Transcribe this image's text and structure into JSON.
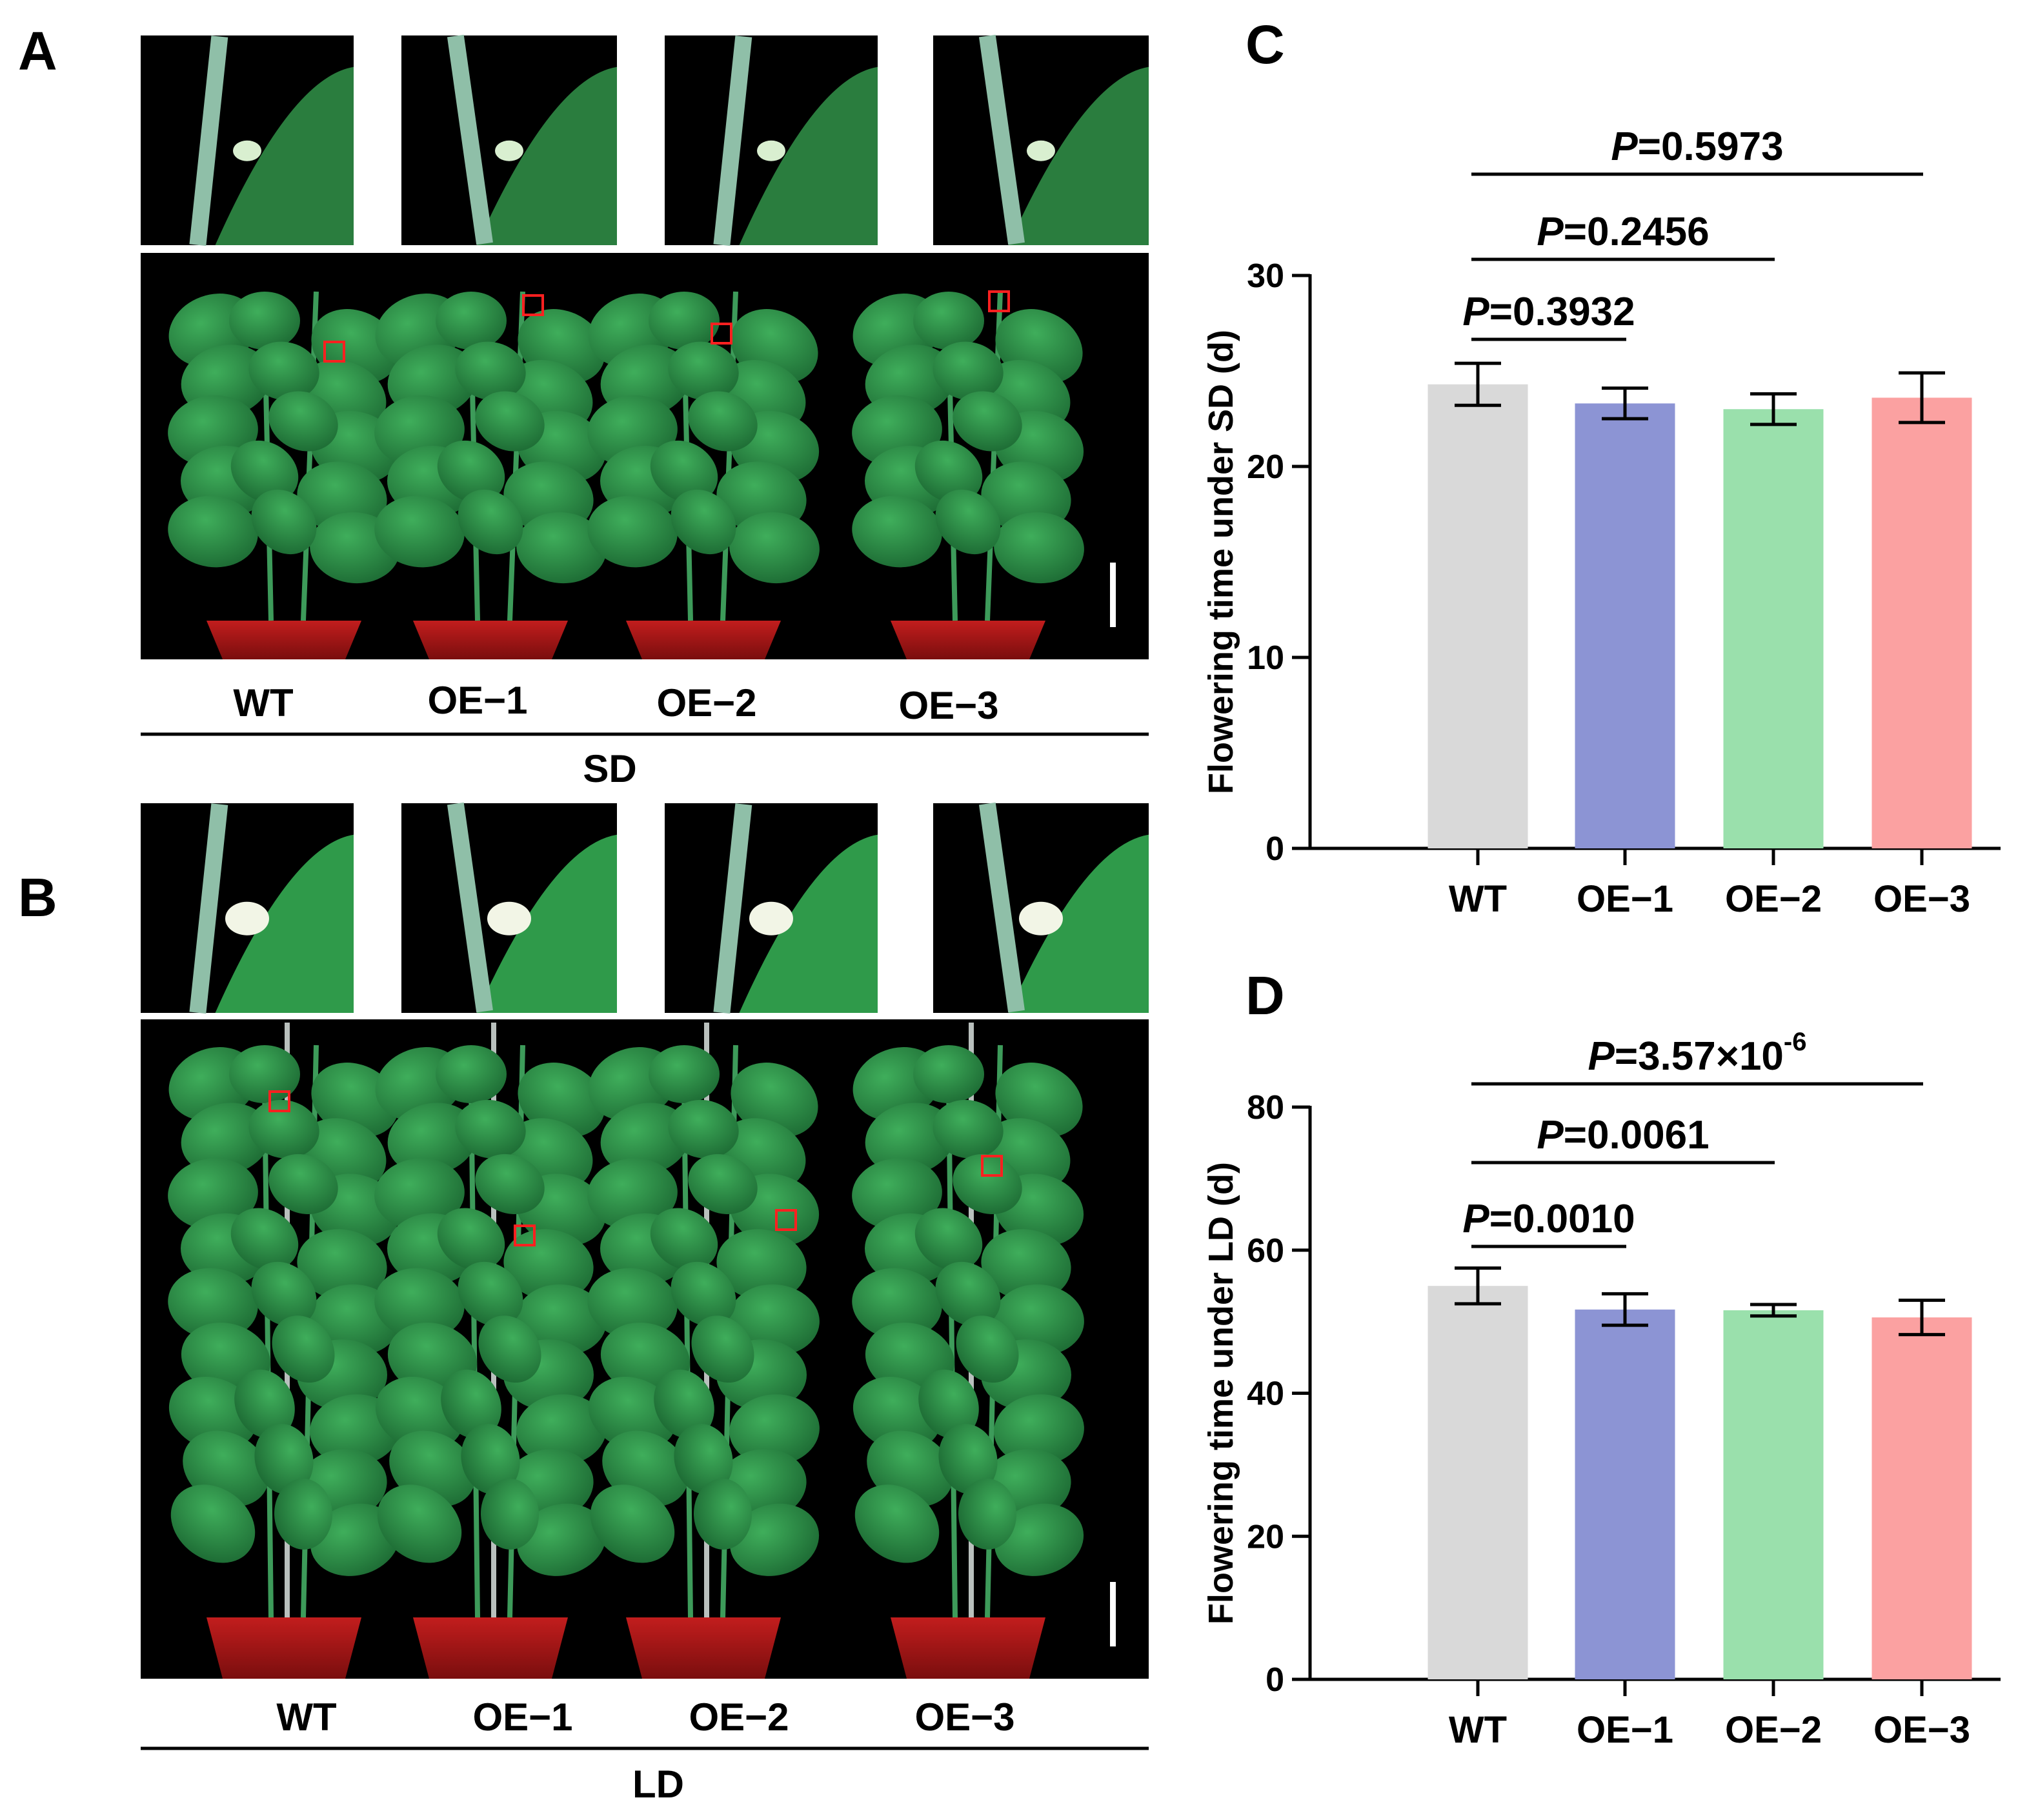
{
  "figure": {
    "panels": {
      "A": "A",
      "B": "B",
      "C": "C",
      "D": "D"
    },
    "photo_sd": {
      "labels": [
        "WT",
        "OE−1",
        "OE−2",
        "OE−3"
      ],
      "condition": "SD"
    },
    "photo_ld": {
      "labels": [
        "WT",
        "OE−1",
        "OE−2",
        "OE−3"
      ],
      "condition": "LD"
    }
  },
  "chart_data": [
    {
      "type": "bar",
      "panel": "C",
      "categories": [
        "WT",
        "OE−1",
        "OE−2",
        "OE−3"
      ],
      "values": [
        24.3,
        23.3,
        23.0,
        23.6
      ],
      "errors": [
        1.1,
        0.8,
        0.8,
        1.3
      ],
      "colors": [
        "#d9d9d9",
        "#8c94d4",
        "#9ae0ac",
        "#fba1a1"
      ],
      "ylabel": "Flowering time under SD (d)",
      "ylim": [
        0,
        30
      ],
      "yticks": [
        0,
        10,
        20,
        30
      ],
      "annotations": [
        {
          "italic": "P",
          "text": "=0.3932",
          "from": 0,
          "to": 1
        },
        {
          "italic": "P",
          "text": "=0.2456",
          "from": 0,
          "to": 2
        },
        {
          "italic": "P",
          "text": "=0.5973",
          "from": 0,
          "to": 3
        }
      ]
    },
    {
      "type": "bar",
      "panel": "D",
      "categories": [
        "WT",
        "OE−1",
        "OE−2",
        "OE−3"
      ],
      "values": [
        55.0,
        51.7,
        51.6,
        50.6
      ],
      "errors": [
        2.5,
        2.2,
        0.8,
        2.4
      ],
      "colors": [
        "#d9d9d9",
        "#8c94d4",
        "#9ae0ac",
        "#fba1a1"
      ],
      "ylabel": "Flowering time under LD (d)",
      "ylim": [
        0,
        80
      ],
      "yticks": [
        0,
        20,
        40,
        60,
        80
      ],
      "annotations": [
        {
          "italic": "P",
          "text": "=0.0010",
          "from": 0,
          "to": 1
        },
        {
          "italic": "P",
          "text": "=0.0061",
          "from": 0,
          "to": 2
        },
        {
          "italic": "P",
          "text": "=3.57×10",
          "sup": "-6",
          "from": 0,
          "to": 3
        }
      ]
    }
  ]
}
